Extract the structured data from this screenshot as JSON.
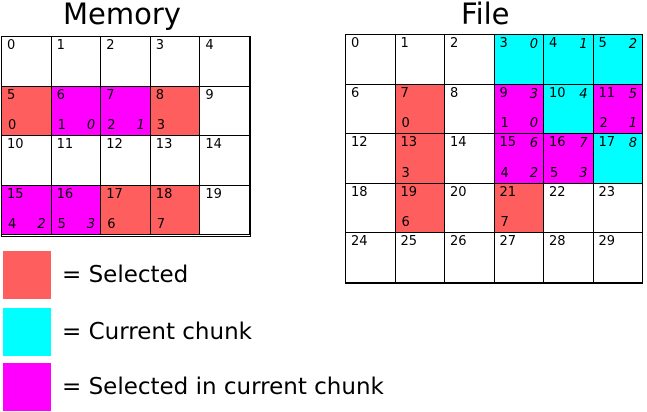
{
  "titles": {
    "memory": "Memory",
    "file": "File"
  },
  "colors": {
    "selected": "#ff5e5e",
    "current": "#00ffff",
    "both": "#ff00ff"
  },
  "memory": {
    "cols": 5,
    "cells": [
      {
        "n": "0"
      },
      {
        "n": "1"
      },
      {
        "n": "2"
      },
      {
        "n": "3"
      },
      {
        "n": "4"
      },
      {
        "n": "5",
        "state": "sel",
        "sub": "0"
      },
      {
        "n": "6",
        "state": "both",
        "sub": "1",
        "chunk": "0",
        "chunk_pos": "bot"
      },
      {
        "n": "7",
        "state": "both",
        "sub": "2",
        "chunk": "1",
        "chunk_pos": "bot"
      },
      {
        "n": "8",
        "state": "sel",
        "sub": "3"
      },
      {
        "n": "9"
      },
      {
        "n": "10"
      },
      {
        "n": "11"
      },
      {
        "n": "12"
      },
      {
        "n": "13"
      },
      {
        "n": "14"
      },
      {
        "n": "15",
        "state": "both",
        "sub": "4",
        "chunk": "2",
        "chunk_pos": "bot"
      },
      {
        "n": "16",
        "state": "both",
        "sub": "5",
        "chunk": "3",
        "chunk_pos": "bot"
      },
      {
        "n": "17",
        "state": "sel",
        "sub": "6"
      },
      {
        "n": "18",
        "state": "sel",
        "sub": "7"
      },
      {
        "n": "19"
      }
    ]
  },
  "file": {
    "cols": 6,
    "cells": [
      {
        "n": "0"
      },
      {
        "n": "1"
      },
      {
        "n": "2"
      },
      {
        "n": "3",
        "state": "cur",
        "chunk": "0",
        "chunk_pos": "top"
      },
      {
        "n": "4",
        "state": "cur",
        "chunk": "1",
        "chunk_pos": "top"
      },
      {
        "n": "5",
        "state": "cur",
        "chunk": "2",
        "chunk_pos": "top"
      },
      {
        "n": "6"
      },
      {
        "n": "7",
        "state": "sel",
        "sub": "0"
      },
      {
        "n": "8"
      },
      {
        "n": "9",
        "state": "both",
        "sub": "1",
        "chunk": "3",
        "chunk_pos": "top",
        "chunk2": "0"
      },
      {
        "n": "10",
        "state": "cur",
        "chunk": "4",
        "chunk_pos": "top"
      },
      {
        "n": "11",
        "state": "both",
        "sub": "2",
        "chunk": "5",
        "chunk_pos": "top",
        "chunk2": "1"
      },
      {
        "n": "12"
      },
      {
        "n": "13",
        "state": "sel",
        "sub": "3"
      },
      {
        "n": "14"
      },
      {
        "n": "15",
        "state": "both",
        "sub": "4",
        "chunk": "6",
        "chunk_pos": "top",
        "chunk2": "2"
      },
      {
        "n": "16",
        "state": "both",
        "sub": "5",
        "chunk": "7",
        "chunk_pos": "top",
        "chunk2": "3"
      },
      {
        "n": "17",
        "state": "cur",
        "chunk": "8",
        "chunk_pos": "top"
      },
      {
        "n": "18"
      },
      {
        "n": "19",
        "state": "sel",
        "sub": "6"
      },
      {
        "n": "20"
      },
      {
        "n": "21",
        "state": "sel",
        "sub": "7"
      },
      {
        "n": "22"
      },
      {
        "n": "23"
      },
      {
        "n": "24"
      },
      {
        "n": "25"
      },
      {
        "n": "26"
      },
      {
        "n": "27"
      },
      {
        "n": "28"
      },
      {
        "n": "29"
      }
    ]
  },
  "legend": [
    {
      "key": "selected",
      "label": "= Selected"
    },
    {
      "key": "current",
      "label": "= Current chunk"
    },
    {
      "key": "both",
      "label": "= Selected in current chunk"
    }
  ]
}
